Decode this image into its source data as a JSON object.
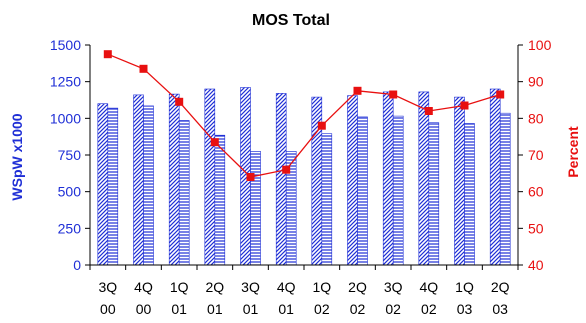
{
  "chart_data": {
    "type": "bar",
    "title": "MOS Total",
    "xlabel": "",
    "ylabel": "WSpW x1000",
    "y2label": "Percent",
    "categories": [
      [
        "3Q",
        "00"
      ],
      [
        "4Q",
        "00"
      ],
      [
        "1Q",
        "01"
      ],
      [
        "2Q",
        "01"
      ],
      [
        "3Q",
        "01"
      ],
      [
        "4Q",
        "01"
      ],
      [
        "1Q",
        "02"
      ],
      [
        "2Q",
        "02"
      ],
      [
        "3Q",
        "02"
      ],
      [
        "4Q",
        "02"
      ],
      [
        "1Q",
        "03"
      ],
      [
        "2Q",
        "03"
      ]
    ],
    "ylim": [
      0,
      1500
    ],
    "yticks": [
      0,
      250,
      500,
      750,
      1000,
      1250,
      1500
    ],
    "y2lim": [
      40,
      100
    ],
    "y2ticks": [
      40,
      50,
      60,
      70,
      80,
      90,
      100
    ],
    "series": [
      {
        "values": [
          1100,
          1160,
          1165,
          1200,
          1210,
          1170,
          1145,
          1155,
          1180,
          1180,
          1145,
          1200
        ],
        "axis": "left",
        "style": "diagonal-hatch",
        "color": "#1f2fd6"
      },
      {
        "values": [
          1070,
          1085,
          985,
          885,
          775,
          775,
          895,
          1010,
          1015,
          970,
          965,
          1035
        ],
        "axis": "left",
        "style": "horizontal-hatch",
        "color": "#1f2fd6"
      },
      {
        "values": [
          97.5,
          93.5,
          84.5,
          73.5,
          64,
          66,
          78,
          87.5,
          86.5,
          82,
          83.5,
          86.5
        ],
        "axis": "right",
        "type": "line",
        "marker": "square",
        "color": "#e81010"
      }
    ],
    "grid": false,
    "colors": {
      "left_axis": "#1f2fd6",
      "right_axis": "#e81010",
      "axis_line": "#000000"
    }
  }
}
